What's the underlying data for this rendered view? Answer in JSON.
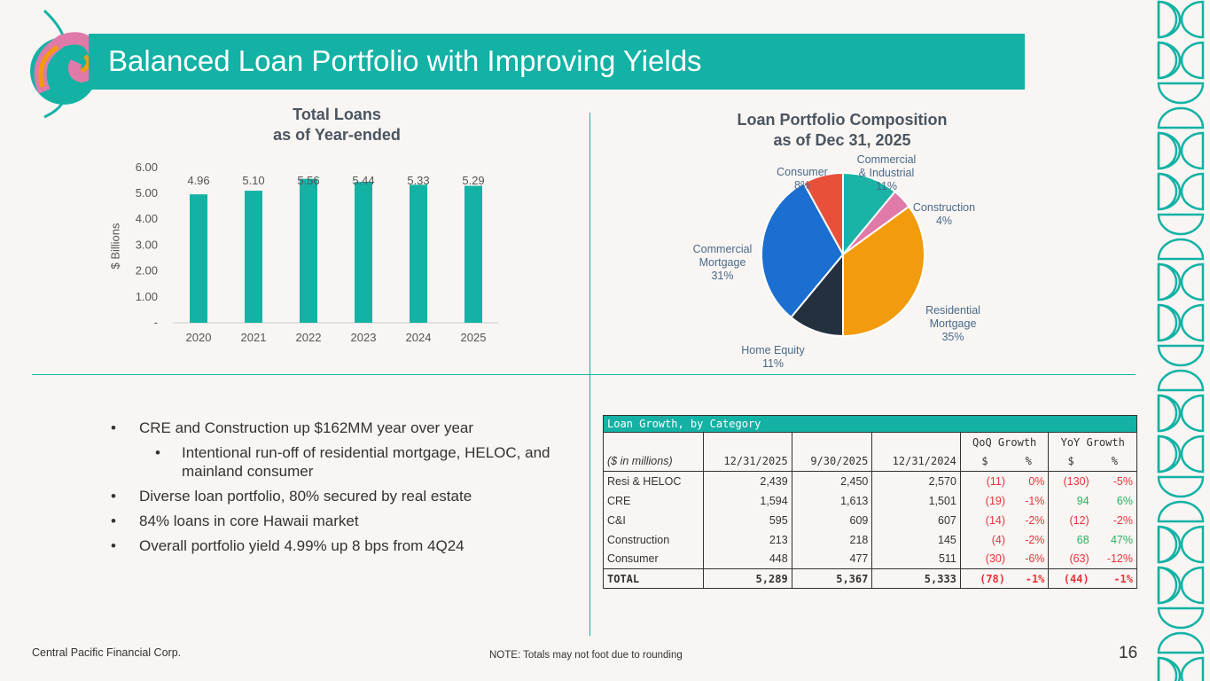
{
  "header": {
    "title": "Balanced Loan Portfolio with Improving Yields"
  },
  "colors": {
    "accent": "#13b2a5",
    "bar": "#13b2a5",
    "negative": "#e8333a",
    "positive": "#2ab35c"
  },
  "chart_data": [
    {
      "type": "bar",
      "title": "Total Loans\nas of Year-ended",
      "title_lines": [
        "Total Loans",
        "as of Year-ended"
      ],
      "ylabel": "$ Billions",
      "ylim": [
        0,
        6
      ],
      "yticks": [
        "-",
        "1.00",
        "2.00",
        "3.00",
        "4.00",
        "5.00",
        "6.00"
      ],
      "categories": [
        "2020",
        "2021",
        "2022",
        "2023",
        "2024",
        "2025"
      ],
      "values": [
        4.96,
        5.1,
        5.56,
        5.44,
        5.33,
        5.29
      ],
      "data_labels": [
        "4.96",
        "5.10",
        "5.56",
        "5.44",
        "5.33",
        "5.29"
      ],
      "grid": false
    },
    {
      "type": "pie",
      "title_lines": [
        "Loan Portfolio Composition",
        "as of Dec 31, 2025"
      ],
      "slices": [
        {
          "label": [
            "Commercial",
            "& Industrial"
          ],
          "value": 11,
          "pct": "11%",
          "color": "#1ab3a6"
        },
        {
          "label": [
            "Construction"
          ],
          "value": 4,
          "pct": "4%",
          "color": "#e07aa8"
        },
        {
          "label": [
            "Residential",
            "Mortgage"
          ],
          "value": 35,
          "pct": "35%",
          "color": "#f29b0c"
        },
        {
          "label": [
            "Home Equity"
          ],
          "value": 11,
          "pct": "11%",
          "color": "#25303f"
        },
        {
          "label": [
            "Commercial",
            "Mortgage"
          ],
          "value": 31,
          "pct": "31%",
          "color": "#1a6fd0"
        },
        {
          "label": [
            "Consumer"
          ],
          "value": 8,
          "pct": "8%",
          "color": "#e8503a"
        }
      ]
    }
  ],
  "bullets": [
    "CRE and Construction up $162MM year over year",
    "Intentional run-off of residential mortgage, HELOC, and mainland consumer",
    "Diverse loan portfolio, 80% secured by real estate",
    "84% loans in core Hawaii market",
    "Overall portfolio yield 4.99% up 8 bps from 4Q24"
  ],
  "table": {
    "title": "Loan Growth, by Category",
    "group_headers": [
      "QoQ Growth",
      "YoY Growth"
    ],
    "headers": [
      "($ in millions)",
      "12/31/2025",
      "9/30/2025",
      "12/31/2024",
      "$",
      "%",
      "$",
      "%"
    ],
    "rows": [
      [
        "Resi & HELOC",
        "2,439",
        "2,450",
        "2,570",
        "(11)",
        "0%",
        "(130)",
        "-5%"
      ],
      [
        "CRE",
        "1,594",
        "1,613",
        "1,501",
        "(19)",
        "-1%",
        "94",
        "6%"
      ],
      [
        "C&I",
        "595",
        "609",
        "607",
        "(14)",
        "-2%",
        "(12)",
        "-2%"
      ],
      [
        "Construction",
        "213",
        "218",
        "145",
        "(4)",
        "-2%",
        "68",
        "47%"
      ],
      [
        "Consumer",
        "448",
        "477",
        "511",
        "(30)",
        "-6%",
        "(63)",
        "-12%"
      ]
    ],
    "total": [
      "TOTAL",
      "5,289",
      "5,367",
      "5,333",
      "(78)",
      "-1%",
      "(44)",
      "-1%"
    ]
  },
  "footer": {
    "company": "Central Pacific Financial Corp.",
    "note": "NOTE: Totals may not foot due to rounding",
    "page": "16"
  }
}
